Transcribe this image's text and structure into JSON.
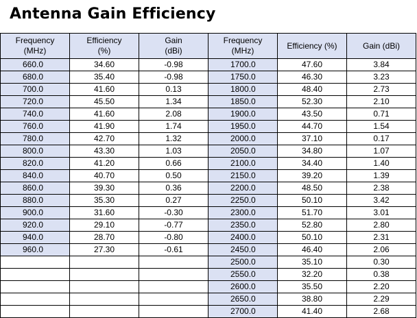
{
  "title": "Antenna Gain Efficiency",
  "headers": {
    "left_freq": [
      "Frequency",
      "(MHz)"
    ],
    "left_eff": [
      "Efficiency",
      "(%)"
    ],
    "left_gain": [
      "Gain",
      "(dBi)"
    ],
    "right_freq": [
      "Frequency",
      "(MHz)"
    ],
    "right_eff": "Efficiency (%)",
    "right_gain": "Gain (dBi)"
  },
  "rows": [
    {
      "left": [
        "660.0",
        "34.60",
        "-0.98"
      ],
      "right": [
        "1700.0",
        "47.60",
        "3.84"
      ]
    },
    {
      "left": [
        "680.0",
        "35.40",
        "-0.98"
      ],
      "right": [
        "1750.0",
        "46.30",
        "3.23"
      ]
    },
    {
      "left": [
        "700.0",
        "41.60",
        "0.13"
      ],
      "right": [
        "1800.0",
        "48.40",
        "2.73"
      ]
    },
    {
      "left": [
        "720.0",
        "45.50",
        "1.34"
      ],
      "right": [
        "1850.0",
        "52.30",
        "2.10"
      ]
    },
    {
      "left": [
        "740.0",
        "41.60",
        "2.08"
      ],
      "right": [
        "1900.0",
        "43.50",
        "0.71"
      ]
    },
    {
      "left": [
        "760.0",
        "41.90",
        "1.74"
      ],
      "right": [
        "1950.0",
        "44.70",
        "1.54"
      ]
    },
    {
      "left": [
        "780.0",
        "42.70",
        "1.32"
      ],
      "right": [
        "2000.0",
        "37.10",
        "0.17"
      ]
    },
    {
      "left": [
        "800.0",
        "43.30",
        "1.03"
      ],
      "right": [
        "2050.0",
        "34.80",
        "1.07"
      ]
    },
    {
      "left": [
        "820.0",
        "41.20",
        "0.66"
      ],
      "right": [
        "2100.0",
        "34.40",
        "1.40"
      ]
    },
    {
      "left": [
        "840.0",
        "40.70",
        "0.50"
      ],
      "right": [
        "2150.0",
        "39.20",
        "1.39"
      ]
    },
    {
      "left": [
        "860.0",
        "39.30",
        "0.36"
      ],
      "right": [
        "2200.0",
        "48.50",
        "2.38"
      ]
    },
    {
      "left": [
        "880.0",
        "35.30",
        "0.27"
      ],
      "right": [
        "2250.0",
        "50.10",
        "3.42"
      ]
    },
    {
      "left": [
        "900.0",
        "31.60",
        "-0.30"
      ],
      "right": [
        "2300.0",
        "51.70",
        "3.01"
      ]
    },
    {
      "left": [
        "920.0",
        "29.10",
        "-0.77"
      ],
      "right": [
        "2350.0",
        "52.80",
        "2.80"
      ]
    },
    {
      "left": [
        "940.0",
        "28.70",
        "-0.80"
      ],
      "right": [
        "2400.0",
        "50.10",
        "2.31"
      ]
    },
    {
      "left": [
        "960.0",
        "27.30",
        "-0.61"
      ],
      "right": [
        "2450.0",
        "46.40",
        "2.06"
      ]
    },
    {
      "left": null,
      "right": [
        "2500.0",
        "35.10",
        "0.30"
      ]
    },
    {
      "left": null,
      "right": [
        "2550.0",
        "32.20",
        "0.38"
      ]
    },
    {
      "left": null,
      "right": [
        "2600.0",
        "35.50",
        "2.20"
      ]
    },
    {
      "left": null,
      "right": [
        "2650.0",
        "38.80",
        "2.29"
      ]
    },
    {
      "left": null,
      "right": [
        "2700.0",
        "41.40",
        "2.68"
      ]
    }
  ],
  "colors": {
    "header_bg": "#dbe1f3",
    "freq_bg": "#dbe1f3",
    "border": "#000000"
  }
}
